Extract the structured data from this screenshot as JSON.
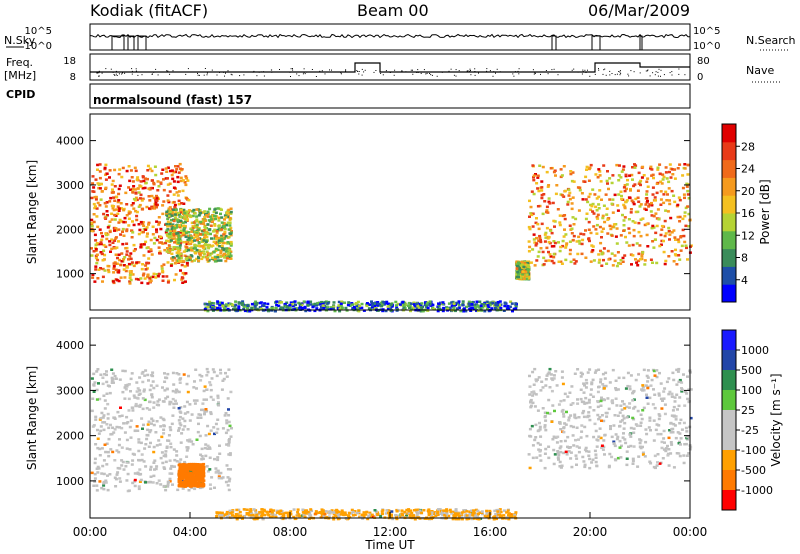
{
  "header": {
    "station": "Kodiak (fitACF)",
    "beam": "Beam 00",
    "date": "06/Mar/2009"
  },
  "strip_labels": {
    "nsky": "N.Sky",
    "freq_line1": "Freq.",
    "freq_line2": "[MHz]",
    "cpid": "CPID",
    "nsearch": "N.Search",
    "nave": "Nave",
    "nsky_ticks": [
      "10^5",
      "10^0"
    ],
    "nsearch_ticks": [
      "10^5",
      "10^0"
    ],
    "freq_ticks": [
      "18",
      "8"
    ],
    "nave_ticks": [
      "80",
      "0"
    ],
    "cpid_text": "normalsound (fast) 157"
  },
  "colors": {
    "power": [
      "#0000ff",
      "#1e4fa8",
      "#3a8c5a",
      "#5fb84a",
      "#b5d334",
      "#f4c020",
      "#f59a1e",
      "#f06a1a",
      "#e83a18",
      "#e00000"
    ],
    "velocity": [
      "#ff0000",
      "#ff7a00",
      "#ffa000",
      "#c6c6c6",
      "#c6c6c6",
      "#5ec83c",
      "#2e8f4f",
      "#2246a8",
      "#1a1aff"
    ],
    "ground_scatter": "#c0c0c0"
  },
  "chart_data": [
    {
      "type": "heatmap",
      "name": "power",
      "xlabel": "",
      "ylabel": "Slant Range [km]",
      "xlim": [
        0,
        24
      ],
      "ylim": [
        180,
        4600
      ],
      "y_ticks": [
        "1000",
        "2000",
        "3000",
        "4000"
      ],
      "colorbar_label": "Power [dB]",
      "colorbar_ticks": [
        "4",
        "8",
        "12",
        "16",
        "20",
        "24",
        "28"
      ],
      "colorbar_range": [
        0,
        30
      ],
      "regions": [
        {
          "t": [
            0.0,
            3.9
          ],
          "r": [
            800,
            3500
          ],
          "value": 22
        },
        {
          "t": [
            3.0,
            5.6
          ],
          "r": [
            1300,
            2500
          ],
          "value": 14
        },
        {
          "t": [
            4.5,
            17.0
          ],
          "r": [
            180,
            400
          ],
          "value": 6
        },
        {
          "t": [
            17.0,
            17.5
          ],
          "r": [
            900,
            1300
          ],
          "value": 14
        },
        {
          "t": [
            17.5,
            24.0
          ],
          "r": [
            1200,
            3500
          ],
          "value": 20
        }
      ]
    },
    {
      "type": "heatmap",
      "name": "velocity",
      "xlabel": "Time UT",
      "ylabel": "Slant Range [km]",
      "xlim": [
        0,
        24
      ],
      "ylim": [
        180,
        4600
      ],
      "x_ticks": [
        "00:00",
        "04:00",
        "08:00",
        "12:00",
        "16:00",
        "20:00",
        "00:00"
      ],
      "y_ticks": [
        "1000",
        "2000",
        "3000",
        "4000"
      ],
      "colorbar_label": "Velocity [m s⁻¹]",
      "colorbar_ticks": [
        "1000",
        "500",
        "100",
        "25",
        "-25",
        "-100",
        "-500",
        "-1000"
      ],
      "regions": [
        {
          "t": [
            0.0,
            5.6
          ],
          "r": [
            800,
            3500
          ],
          "value": 0
        },
        {
          "t": [
            3.5,
            4.5
          ],
          "r": [
            900,
            1400
          ],
          "value": -150
        },
        {
          "t": [
            5.0,
            17.0
          ],
          "r": [
            180,
            400
          ],
          "value": -50
        },
        {
          "t": [
            17.5,
            24.0
          ],
          "r": [
            1300,
            3500
          ],
          "value": 0
        }
      ]
    }
  ]
}
